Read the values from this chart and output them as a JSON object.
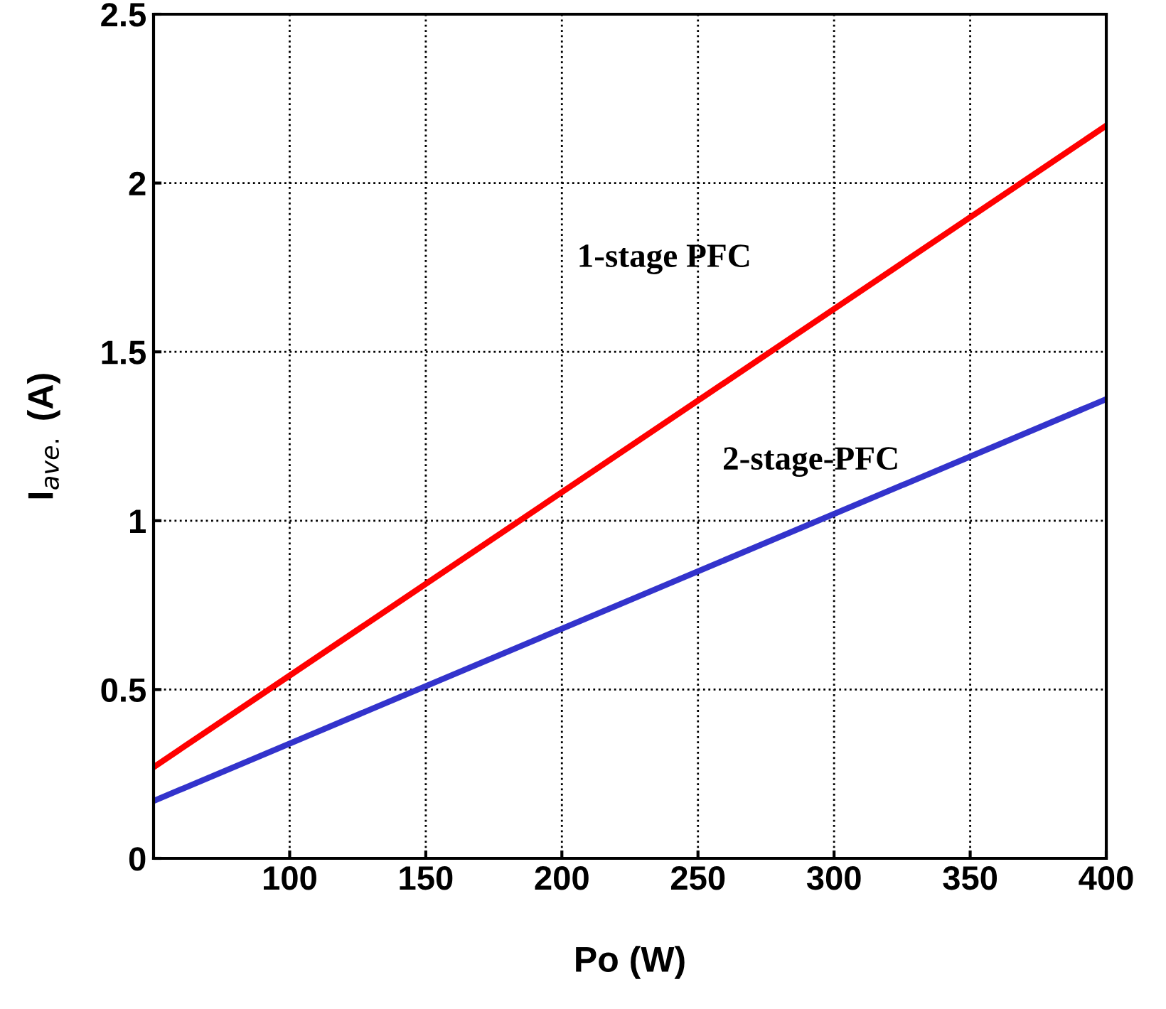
{
  "chart_data": {
    "type": "line",
    "xlabel": "Po (W)",
    "ylabel": "I$_{ave.}$ (A)",
    "x": [
      50,
      400
    ],
    "series": [
      {
        "name": "1-stage PFC",
        "color": "#ff0000",
        "values": [
          0.27,
          2.17
        ]
      },
      {
        "name": "2-stage-PFC",
        "color": "#3333cc",
        "values": [
          0.17,
          1.36
        ]
      }
    ],
    "xlim": [
      50,
      400
    ],
    "ylim": [
      0,
      2.5
    ],
    "xticks": [
      100,
      150,
      200,
      250,
      300,
      350,
      400
    ],
    "yticks": [
      0,
      0.5,
      1,
      1.5,
      2,
      2.5
    ],
    "grid": true,
    "line_style": "solid",
    "marker": "none",
    "legend": false
  }
}
